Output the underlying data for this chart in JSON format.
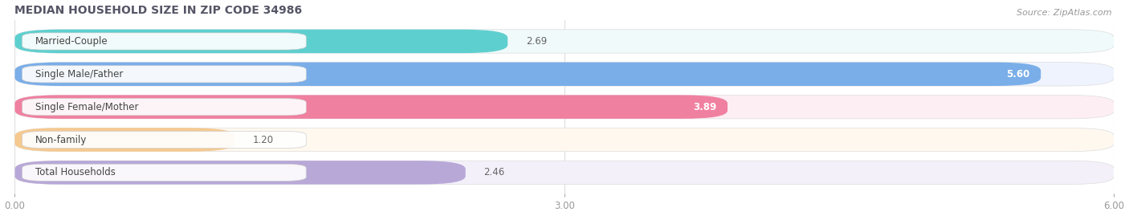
{
  "title": "MEDIAN HOUSEHOLD SIZE IN ZIP CODE 34986",
  "source": "Source: ZipAtlas.com",
  "categories": [
    "Married-Couple",
    "Single Male/Father",
    "Single Female/Mother",
    "Non-family",
    "Total Households"
  ],
  "values": [
    2.69,
    5.6,
    3.89,
    1.2,
    2.46
  ],
  "bar_colors": [
    "#5ecfcf",
    "#7aaee8",
    "#f080a0",
    "#f5c990",
    "#b8a8d8"
  ],
  "bar_bg_colors": [
    "#f0fafa",
    "#eef3fd",
    "#fdeef4",
    "#fef8ef",
    "#f4f0fa"
  ],
  "xlim": [
    0,
    6.0
  ],
  "xticks": [
    0.0,
    3.0,
    6.0
  ],
  "xlabel_labels": [
    "0.00",
    "3.00",
    "6.00"
  ],
  "value_label_inside": [
    false,
    true,
    true,
    false,
    false
  ],
  "figsize": [
    14.06,
    2.69
  ],
  "dpi": 100,
  "title_fontsize": 10,
  "bar_height": 0.72,
  "bar_gap": 0.28,
  "label_fontsize": 8.5,
  "source_fontsize": 8,
  "title_color": "#555566",
  "bg_color": "#ffffff",
  "grid_color": "#dddddd",
  "tick_color": "#999999"
}
